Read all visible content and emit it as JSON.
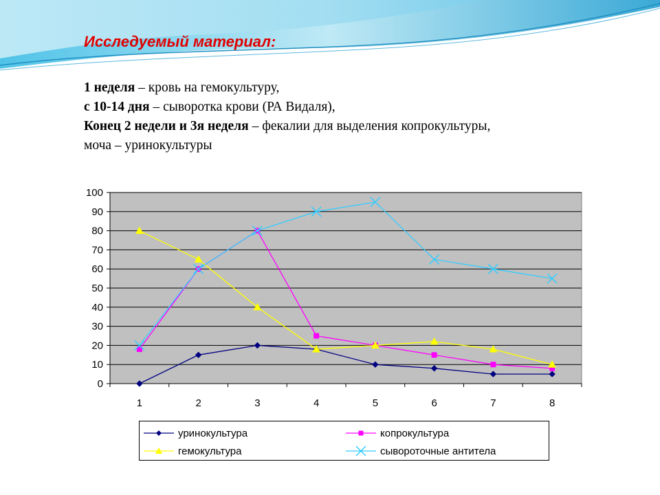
{
  "slide": {
    "title": "Исследуемый материал:",
    "lines": [
      {
        "bold": "1 неделя",
        "rest": " – кровь на гемокультуру,"
      },
      {
        "bold": "с 10-14 дня",
        "rest": " – сыворотка крови  (РА Видаля),"
      },
      {
        "bold": "Конец 2 недели и 3я неделя",
        "rest": " – фекалии для выделения копрокультуры,"
      },
      {
        "bold": "",
        "rest": "моча – уринокультуры"
      }
    ]
  },
  "chart_data": {
    "type": "line",
    "categories": [
      "1",
      "2",
      "3",
      "4",
      "5",
      "6",
      "7",
      "8"
    ],
    "ylim": [
      0,
      100
    ],
    "yticks": [
      "0",
      "10",
      "20",
      "30",
      "40",
      "50",
      "60",
      "70",
      "80",
      "90",
      "100"
    ],
    "grid": true,
    "plot_background": "#c0c0c0",
    "legend_position": "bottom",
    "series": [
      {
        "name": "уринокультура",
        "color": "#000080",
        "marker": "diamond",
        "values": [
          0,
          15,
          20,
          18,
          10,
          8,
          5,
          5
        ]
      },
      {
        "name": "копрокультура",
        "color": "#ff00ff",
        "marker": "square",
        "values": [
          18,
          60,
          80,
          25,
          20,
          15,
          10,
          8
        ]
      },
      {
        "name": "гемокультура",
        "color": "#ffff00",
        "marker": "triangle",
        "values": [
          80,
          65,
          40,
          18,
          20,
          22,
          18,
          10
        ]
      },
      {
        "name": "сывороточные антитела",
        "color": "#33ccff",
        "marker": "x",
        "values": [
          20,
          60,
          80,
          90,
          95,
          65,
          60,
          55
        ]
      }
    ]
  }
}
